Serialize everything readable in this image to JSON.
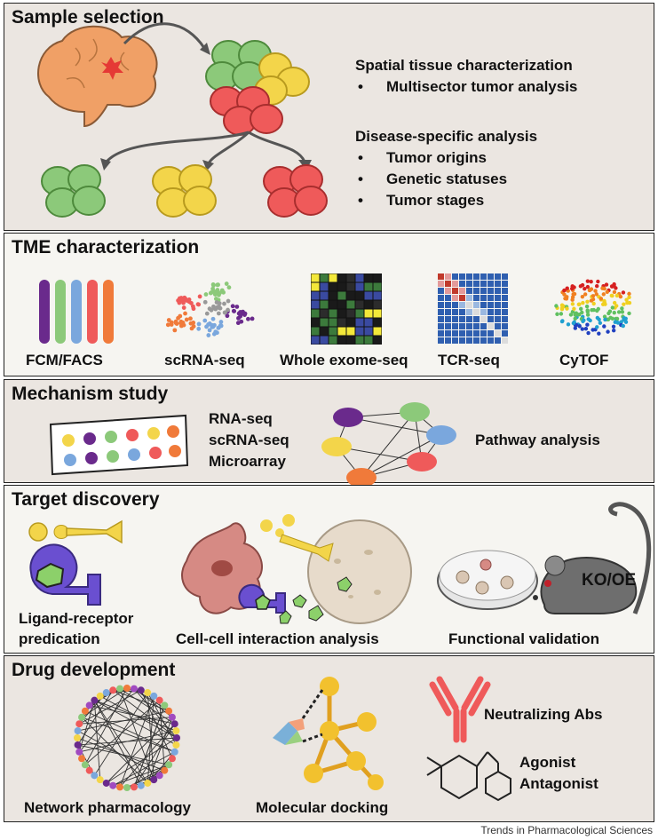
{
  "sample": {
    "title": "Sample selection",
    "spatial_heading": "Spatial tissue characterization",
    "spatial_items": [
      "Multisector tumor analysis"
    ],
    "disease_heading": "Disease-specific analysis",
    "disease_items": [
      "Tumor origins",
      "Genetic statuses",
      "Tumor stages"
    ]
  },
  "tme": {
    "title": "TME characterization",
    "methods": [
      "FCM/FACS",
      "scRNA-seq",
      "Whole exome-seq",
      "TCR-seq",
      "CyTOF"
    ]
  },
  "mechanism": {
    "title": "Mechanism study",
    "assays": [
      "RNA-seq",
      "scRNA-seq",
      "Microarray"
    ],
    "pathway_label": "Pathway analysis"
  },
  "target": {
    "title": "Target discovery",
    "ligand_label_line1": "Ligand-receptor",
    "ligand_label_line2": "predication",
    "cell_label": "Cell-cell interaction analysis",
    "functional_label": "Functional validation",
    "mouse_label": "KO/OE"
  },
  "drug": {
    "title": "Drug development",
    "network_label": "Network pharmacology",
    "docking_label": "Molecular docking",
    "abs_label": "Neutralizing Abs",
    "agonist_label": "Agonist",
    "antagonist_label": "Antagonist"
  },
  "credit": "Trends in Pharmacological Sciences",
  "colors": {
    "green_tissue": "#8cc97a",
    "yellow_tissue": "#f3d54a",
    "red_tissue": "#ef5a5a",
    "brain": "#f0a066",
    "purple": "#6a2a8c",
    "orange": "#f07a3a",
    "blue": "#7aa7dd"
  }
}
